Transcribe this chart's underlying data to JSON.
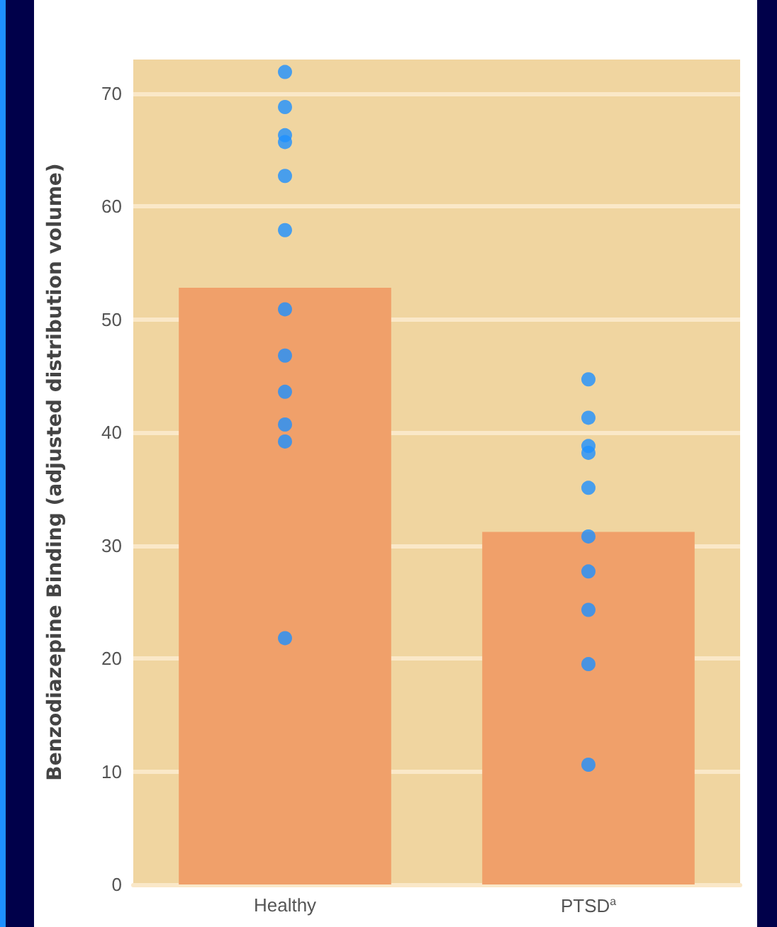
{
  "chart_data": {
    "type": "bar",
    "ylabel": "Benzodiazepine Binding (adjusted distribution volume)",
    "categories": [
      "Healthy",
      "PTSD$^{a}$"
    ],
    "series": [
      {
        "color": "#f0a06a",
        "values": [
          52.8,
          31.2
        ]
      },
      {
        "type": "scatter",
        "color": "#1e90ff",
        "x": [
          "Healthy",
          "Healthy",
          "Healthy",
          "Healthy",
          "Healthy",
          "Healthy",
          "Healthy",
          "Healthy",
          "Healthy",
          "Healthy",
          "Healthy",
          "Healthy",
          "PTSD$^{a}$",
          "PTSD$^{a}$",
          "PTSD$^{a}$",
          "PTSD$^{a}$",
          "PTSD$^{a}$",
          "PTSD$^{a}$",
          "PTSD$^{a}$",
          "PTSD$^{a}$",
          "PTSD$^{a}$",
          "PTSD$^{a}$"
        ],
        "values": [
          71.9,
          68.8,
          66.3,
          65.7,
          62.7,
          57.9,
          50.9,
          46.8,
          43.6,
          40.7,
          39.2,
          21.8,
          44.7,
          41.3,
          38.8,
          38.2,
          35.1,
          30.8,
          27.7,
          24.3,
          19.5,
          10.6
        ]
      }
    ],
    "ylim": [
      0,
      73
    ],
    "yticks": [
      0,
      10,
      20,
      30,
      40,
      50,
      60,
      70
    ],
    "grid": "y",
    "marker": "circle"
  }
}
